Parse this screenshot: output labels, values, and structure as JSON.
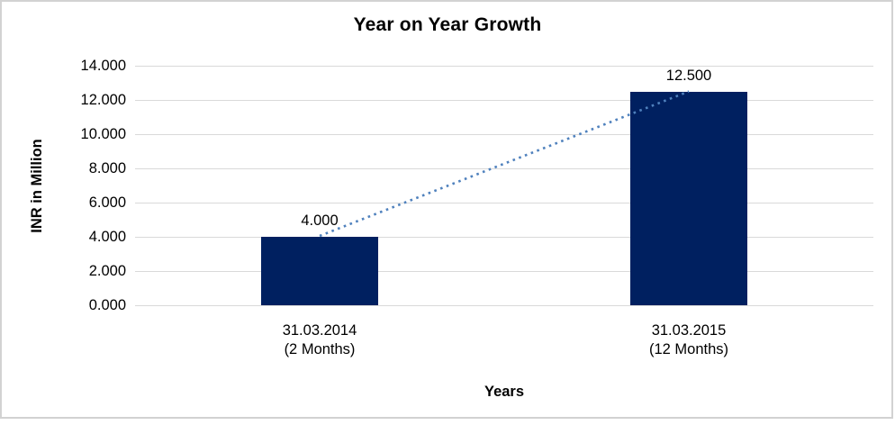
{
  "chart_data": {
    "type": "bar",
    "title": "Year on Year Growth",
    "xlabel": "Years",
    "ylabel": "INR in Million",
    "categories": [
      "31.03.2014\n(2 Months)",
      "31.03.2015\n(12 Months)"
    ],
    "values": [
      4.0,
      12.5
    ],
    "data_labels": [
      "4.000",
      "12.500"
    ],
    "yticks": [
      0,
      2,
      4,
      6,
      8,
      10,
      12,
      14
    ],
    "ytick_labels": [
      "0.000",
      "2.000",
      "4.000",
      "6.000",
      "8.000",
      "10.000",
      "12.000",
      "14.000"
    ],
    "ylim": [
      0,
      14
    ],
    "grid": "horizontal",
    "legend": "none",
    "trendline": {
      "present": true,
      "style": "dotted",
      "connects": [
        "bar-1-top",
        "bar-2-top"
      ]
    },
    "colors": {
      "bar": "#002060",
      "trendline": "#4F81BD",
      "gridline": "#D9D9D9",
      "text": "#000000",
      "frame_border": "#D2D2D2"
    }
  }
}
